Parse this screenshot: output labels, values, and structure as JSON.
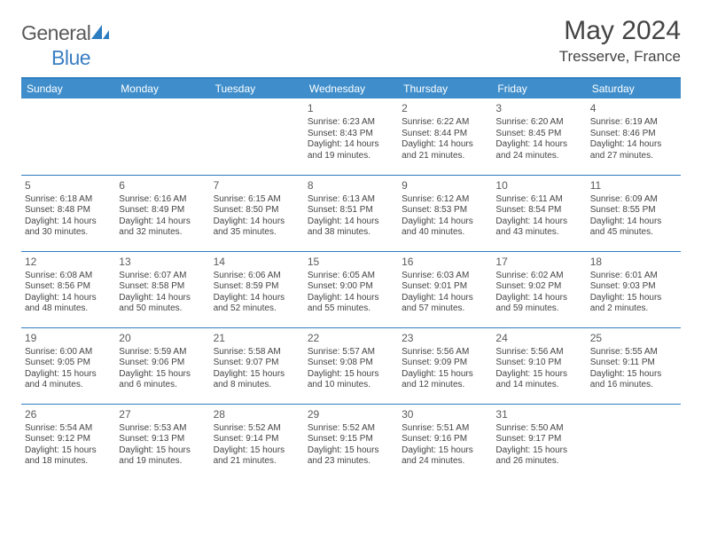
{
  "logo": {
    "text_general": "General",
    "text_blue": "Blue"
  },
  "header": {
    "title": "May 2024",
    "location": "Tresserve, France"
  },
  "colors": {
    "header_bar": "#3f8ecb",
    "rule": "#2f7dc1",
    "text": "#444444",
    "logo_gray": "#5a5a5a",
    "logo_blue": "#3a7fc4"
  },
  "day_names": [
    "Sunday",
    "Monday",
    "Tuesday",
    "Wednesday",
    "Thursday",
    "Friday",
    "Saturday"
  ],
  "weeks": [
    [
      null,
      null,
      null,
      {
        "n": "1",
        "sr": "6:23 AM",
        "ss": "8:43 PM",
        "dl": "14 hours and 19 minutes."
      },
      {
        "n": "2",
        "sr": "6:22 AM",
        "ss": "8:44 PM",
        "dl": "14 hours and 21 minutes."
      },
      {
        "n": "3",
        "sr": "6:20 AM",
        "ss": "8:45 PM",
        "dl": "14 hours and 24 minutes."
      },
      {
        "n": "4",
        "sr": "6:19 AM",
        "ss": "8:46 PM",
        "dl": "14 hours and 27 minutes."
      }
    ],
    [
      {
        "n": "5",
        "sr": "6:18 AM",
        "ss": "8:48 PM",
        "dl": "14 hours and 30 minutes."
      },
      {
        "n": "6",
        "sr": "6:16 AM",
        "ss": "8:49 PM",
        "dl": "14 hours and 32 minutes."
      },
      {
        "n": "7",
        "sr": "6:15 AM",
        "ss": "8:50 PM",
        "dl": "14 hours and 35 minutes."
      },
      {
        "n": "8",
        "sr": "6:13 AM",
        "ss": "8:51 PM",
        "dl": "14 hours and 38 minutes."
      },
      {
        "n": "9",
        "sr": "6:12 AM",
        "ss": "8:53 PM",
        "dl": "14 hours and 40 minutes."
      },
      {
        "n": "10",
        "sr": "6:11 AM",
        "ss": "8:54 PM",
        "dl": "14 hours and 43 minutes."
      },
      {
        "n": "11",
        "sr": "6:09 AM",
        "ss": "8:55 PM",
        "dl": "14 hours and 45 minutes."
      }
    ],
    [
      {
        "n": "12",
        "sr": "6:08 AM",
        "ss": "8:56 PM",
        "dl": "14 hours and 48 minutes."
      },
      {
        "n": "13",
        "sr": "6:07 AM",
        "ss": "8:58 PM",
        "dl": "14 hours and 50 minutes."
      },
      {
        "n": "14",
        "sr": "6:06 AM",
        "ss": "8:59 PM",
        "dl": "14 hours and 52 minutes."
      },
      {
        "n": "15",
        "sr": "6:05 AM",
        "ss": "9:00 PM",
        "dl": "14 hours and 55 minutes."
      },
      {
        "n": "16",
        "sr": "6:03 AM",
        "ss": "9:01 PM",
        "dl": "14 hours and 57 minutes."
      },
      {
        "n": "17",
        "sr": "6:02 AM",
        "ss": "9:02 PM",
        "dl": "14 hours and 59 minutes."
      },
      {
        "n": "18",
        "sr": "6:01 AM",
        "ss": "9:03 PM",
        "dl": "15 hours and 2 minutes."
      }
    ],
    [
      {
        "n": "19",
        "sr": "6:00 AM",
        "ss": "9:05 PM",
        "dl": "15 hours and 4 minutes."
      },
      {
        "n": "20",
        "sr": "5:59 AM",
        "ss": "9:06 PM",
        "dl": "15 hours and 6 minutes."
      },
      {
        "n": "21",
        "sr": "5:58 AM",
        "ss": "9:07 PM",
        "dl": "15 hours and 8 minutes."
      },
      {
        "n": "22",
        "sr": "5:57 AM",
        "ss": "9:08 PM",
        "dl": "15 hours and 10 minutes."
      },
      {
        "n": "23",
        "sr": "5:56 AM",
        "ss": "9:09 PM",
        "dl": "15 hours and 12 minutes."
      },
      {
        "n": "24",
        "sr": "5:56 AM",
        "ss": "9:10 PM",
        "dl": "15 hours and 14 minutes."
      },
      {
        "n": "25",
        "sr": "5:55 AM",
        "ss": "9:11 PM",
        "dl": "15 hours and 16 minutes."
      }
    ],
    [
      {
        "n": "26",
        "sr": "5:54 AM",
        "ss": "9:12 PM",
        "dl": "15 hours and 18 minutes."
      },
      {
        "n": "27",
        "sr": "5:53 AM",
        "ss": "9:13 PM",
        "dl": "15 hours and 19 minutes."
      },
      {
        "n": "28",
        "sr": "5:52 AM",
        "ss": "9:14 PM",
        "dl": "15 hours and 21 minutes."
      },
      {
        "n": "29",
        "sr": "5:52 AM",
        "ss": "9:15 PM",
        "dl": "15 hours and 23 minutes."
      },
      {
        "n": "30",
        "sr": "5:51 AM",
        "ss": "9:16 PM",
        "dl": "15 hours and 24 minutes."
      },
      {
        "n": "31",
        "sr": "5:50 AM",
        "ss": "9:17 PM",
        "dl": "15 hours and 26 minutes."
      },
      null
    ]
  ],
  "labels": {
    "sunrise": "Sunrise:",
    "sunset": "Sunset:",
    "daylight": "Daylight:"
  }
}
